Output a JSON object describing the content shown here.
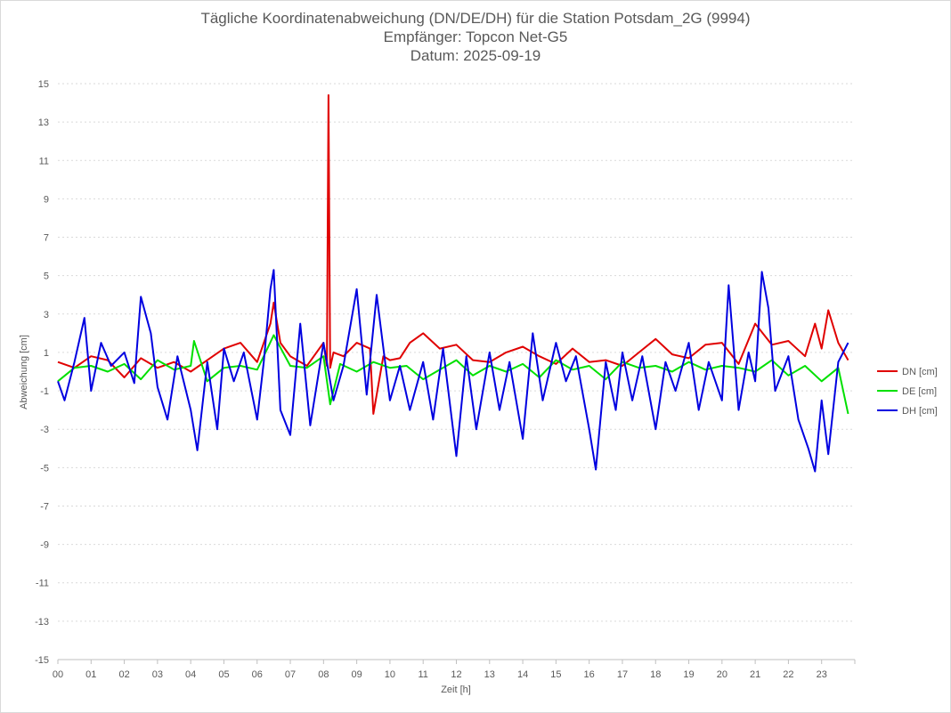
{
  "chart_data": {
    "type": "line",
    "title_lines": [
      "Tägliche Koordinatenabweichung (DN/DE/DH) für die Station Potsdam_2G (9994)",
      "Empfänger: Topcon Net-G5",
      "Datum: 2025-09-19"
    ],
    "xlabel": "Zeit [h]",
    "ylabel": "Abweichung [cm]",
    "xlim": [
      0,
      24
    ],
    "ylim": [
      -15,
      15
    ],
    "x_ticks": [
      "00",
      "01",
      "02",
      "03",
      "04",
      "05",
      "06",
      "07",
      "08",
      "09",
      "10",
      "11",
      "12",
      "13",
      "14",
      "15",
      "16",
      "17",
      "18",
      "19",
      "20",
      "21",
      "22",
      "23"
    ],
    "y_ticks": [
      15,
      13,
      11,
      9,
      7,
      5,
      3,
      1,
      -1,
      -3,
      -5,
      -7,
      -9,
      -11,
      -13,
      -15
    ],
    "grid": "horizontal-dotted",
    "legend_position": "right",
    "series": [
      {
        "name": "DN [cm]",
        "color": "#e00000",
        "x": [
          0,
          0.5,
          1,
          1.5,
          2,
          2.5,
          3,
          3.5,
          4,
          4.5,
          5,
          5.5,
          6,
          6.4,
          6.5,
          6.7,
          7,
          7.5,
          8,
          8.1,
          8.15,
          8.2,
          8.3,
          8.6,
          9,
          9.4,
          9.5,
          9.8,
          10,
          10.3,
          10.6,
          11,
          11.5,
          12,
          12.5,
          13,
          13.5,
          14,
          14.5,
          15,
          15.5,
          16,
          16.5,
          17,
          17.5,
          18,
          18.5,
          19,
          19.5,
          20,
          20.5,
          21,
          21.5,
          22,
          22.5,
          22.8,
          23,
          23.2,
          23.5,
          23.8
        ],
        "values": [
          0.5,
          0.2,
          0.8,
          0.6,
          -0.3,
          0.7,
          0.2,
          0.5,
          0.0,
          0.6,
          1.2,
          1.5,
          0.5,
          2.5,
          3.6,
          1.5,
          0.8,
          0.3,
          1.5,
          0.3,
          14.4,
          0.2,
          1.0,
          0.8,
          1.5,
          1.2,
          -2.2,
          0.8,
          0.6,
          0.7,
          1.5,
          2.0,
          1.2,
          1.4,
          0.6,
          0.5,
          1.0,
          1.3,
          0.8,
          0.4,
          1.2,
          0.5,
          0.6,
          0.3,
          1.0,
          1.7,
          0.9,
          0.7,
          1.4,
          1.5,
          0.4,
          2.5,
          1.4,
          1.6,
          0.8,
          2.5,
          1.2,
          3.2,
          1.5,
          0.6
        ]
      },
      {
        "name": "DE [cm]",
        "color": "#00e000",
        "x": [
          0,
          0.5,
          1,
          1.5,
          2,
          2.5,
          3,
          3.5,
          4,
          4.1,
          4.5,
          5,
          5.5,
          6,
          6.2,
          6.5,
          7,
          7.5,
          8,
          8.2,
          8.5,
          9,
          9.5,
          10,
          10.5,
          11,
          11.5,
          12,
          12.5,
          13,
          13.5,
          14,
          14.5,
          15,
          15.5,
          16,
          16.5,
          17,
          17.5,
          18,
          18.5,
          19,
          19.5,
          20,
          20.5,
          21,
          21.5,
          22,
          22.5,
          23,
          23.5,
          23.8
        ],
        "values": [
          -0.5,
          0.2,
          0.3,
          0.0,
          0.4,
          -0.4,
          0.6,
          0.1,
          0.3,
          1.6,
          -0.5,
          0.2,
          0.3,
          0.1,
          0.8,
          1.9,
          0.3,
          0.2,
          0.8,
          -1.7,
          0.4,
          0.0,
          0.5,
          0.2,
          0.3,
          -0.4,
          0.1,
          0.6,
          -0.2,
          0.3,
          0.0,
          0.4,
          -0.3,
          0.6,
          0.1,
          0.3,
          -0.4,
          0.5,
          0.2,
          0.3,
          0.0,
          0.5,
          0.1,
          0.3,
          0.2,
          0.0,
          0.6,
          -0.2,
          0.3,
          -0.5,
          0.2,
          -2.2
        ]
      },
      {
        "name": "DH [cm]",
        "color": "#0000e0",
        "x": [
          0,
          0.2,
          0.5,
          0.8,
          1,
          1.3,
          1.6,
          2,
          2.3,
          2.5,
          2.8,
          3,
          3.3,
          3.6,
          4,
          4.2,
          4.5,
          4.8,
          5,
          5.3,
          5.6,
          6,
          6.2,
          6.4,
          6.5,
          6.7,
          7,
          7.3,
          7.6,
          8,
          8.3,
          8.6,
          9,
          9.3,
          9.6,
          10,
          10.3,
          10.6,
          11,
          11.3,
          11.6,
          12,
          12.3,
          12.6,
          13,
          13.3,
          13.6,
          14,
          14.3,
          14.6,
          15,
          15.3,
          15.6,
          16,
          16.2,
          16.5,
          16.8,
          17,
          17.3,
          17.6,
          18,
          18.3,
          18.6,
          19,
          19.3,
          19.6,
          20,
          20.2,
          20.5,
          20.8,
          21,
          21.2,
          21.4,
          21.6,
          22,
          22.3,
          22.6,
          22.8,
          23,
          23.2,
          23.5,
          23.8
        ],
        "values": [
          -0.5,
          -1.5,
          0.5,
          2.8,
          -1.0,
          1.5,
          0.3,
          1.0,
          -0.6,
          3.9,
          2.0,
          -0.8,
          -2.5,
          0.8,
          -2.0,
          -4.1,
          0.5,
          -3.0,
          1.2,
          -0.5,
          1.0,
          -2.5,
          0.5,
          4.3,
          5.3,
          -2.0,
          -3.3,
          2.5,
          -2.8,
          1.5,
          -1.5,
          0.3,
          4.3,
          -1.2,
          4.0,
          -1.5,
          0.3,
          -2.0,
          0.5,
          -2.5,
          1.2,
          -4.4,
          0.8,
          -3.0,
          1.0,
          -2.0,
          0.5,
          -3.5,
          2.0,
          -1.5,
          1.5,
          -0.5,
          0.8,
          -3.0,
          -5.1,
          0.5,
          -2.0,
          1.0,
          -1.5,
          0.8,
          -3.0,
          0.5,
          -1.0,
          1.5,
          -2.0,
          0.5,
          -1.5,
          4.5,
          -2.0,
          1.0,
          -0.5,
          5.2,
          3.3,
          -1.0,
          0.8,
          -2.5,
          -4.0,
          -5.2,
          -1.5,
          -4.3,
          0.5,
          1.5
        ]
      }
    ]
  }
}
